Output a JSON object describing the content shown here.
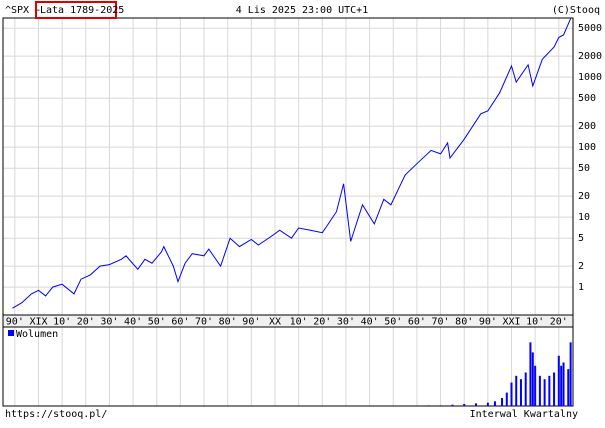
{
  "chart_data": {
    "type": "line",
    "log_scale": true,
    "grid": true,
    "symbol": "^SPX -",
    "range": "Lata 1789-2025",
    "date": "4 Lis 2025 23:00 UTC+1",
    "source": "(C)Stooq",
    "url": "https://stooq.pl/",
    "interval": "Interwal Kwartalny",
    "xlim": [
      1785,
      2026
    ],
    "xticks": [
      {
        "value": 1790,
        "label": "90'"
      },
      {
        "value": 1800,
        "label": "XIX"
      },
      {
        "value": 1810,
        "label": "10'"
      },
      {
        "value": 1820,
        "label": "20'"
      },
      {
        "value": 1830,
        "label": "30'"
      },
      {
        "value": 1840,
        "label": "40'"
      },
      {
        "value": 1850,
        "label": "50'"
      },
      {
        "value": 1860,
        "label": "60'"
      },
      {
        "value": 1870,
        "label": "70'"
      },
      {
        "value": 1880,
        "label": "80'"
      },
      {
        "value": 1890,
        "label": "90'"
      },
      {
        "value": 1900,
        "label": "XX"
      },
      {
        "value": 1910,
        "label": "10'"
      },
      {
        "value": 1920,
        "label": "20'"
      },
      {
        "value": 1930,
        "label": "30'"
      },
      {
        "value": 1940,
        "label": "40'"
      },
      {
        "value": 1950,
        "label": "50'"
      },
      {
        "value": 1960,
        "label": "60'"
      },
      {
        "value": 1970,
        "label": "70'"
      },
      {
        "value": 1980,
        "label": "80'"
      },
      {
        "value": 1990,
        "label": "90'"
      },
      {
        "value": 2000,
        "label": "XXI"
      },
      {
        "value": 2010,
        "label": "10'"
      },
      {
        "value": 2020,
        "label": "20'"
      }
    ],
    "ylim": [
      0.4,
      7000
    ],
    "yticks": [
      1,
      2,
      5,
      10,
      20,
      50,
      100,
      200,
      500,
      1000,
      2000,
      5000
    ],
    "series": [
      {
        "color": "#0000ff",
        "x": [
          1789,
          1793,
          1797,
          1800,
          1803,
          1806,
          1810,
          1815,
          1818,
          1822,
          1826,
          1830,
          1835,
          1837,
          1842,
          1845,
          1848,
          1852,
          1853,
          1857,
          1859,
          1862,
          1865,
          1870,
          1872,
          1877,
          1881,
          1885,
          1890,
          1893,
          1898,
          1902,
          1907,
          1910,
          1915,
          1920,
          1922,
          1926,
          1929,
          1932,
          1937,
          1942,
          1946,
          1949,
          1955,
          1960,
          1966,
          1970,
          1973,
          1974,
          1980,
          1987,
          1990,
          1995,
          2000,
          2002,
          2007,
          2009,
          2013,
          2018,
          2020,
          2022,
          2025
        ],
        "values": [
          0.5,
          0.6,
          0.8,
          0.9,
          0.75,
          1.0,
          1.1,
          0.8,
          1.3,
          1.5,
          2.0,
          2.1,
          2.5,
          2.8,
          1.8,
          2.5,
          2.2,
          3.2,
          3.8,
          2.0,
          1.2,
          2.2,
          3.0,
          2.8,
          3.5,
          2.0,
          5.0,
          3.8,
          4.8,
          4.0,
          5.2,
          6.5,
          5.0,
          7.0,
          6.5,
          6.0,
          7.5,
          12,
          30,
          4.5,
          15,
          8,
          18,
          15,
          40,
          58,
          90,
          80,
          115,
          70,
          130,
          300,
          330,
          600,
          1450,
          850,
          1500,
          750,
          1800,
          2700,
          3700,
          4000,
          6850
        ]
      }
    ],
    "volume": {
      "name": "Wolumen",
      "color": "#0000ff",
      "ylim": [
        0,
        100
      ],
      "x": [
        1965,
        1970,
        1975,
        1980,
        1985,
        1990,
        1993,
        1996,
        1998,
        2000,
        2002,
        2004,
        2006,
        2008,
        2009,
        2010,
        2012,
        2014,
        2016,
        2018,
        2020,
        2021,
        2022,
        2024,
        2025
      ],
      "values": [
        1,
        1,
        2,
        3,
        4,
        5,
        7,
        12,
        20,
        35,
        45,
        40,
        50,
        95,
        80,
        60,
        45,
        40,
        45,
        50,
        75,
        60,
        65,
        55,
        95
      ]
    }
  }
}
